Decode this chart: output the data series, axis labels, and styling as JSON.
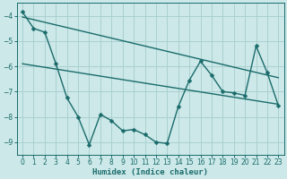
{
  "xlabel": "Humidex (Indice chaleur)",
  "background_color": "#cce8e8",
  "grid_color": "#aad0d0",
  "line_color": "#1a6b6b",
  "xlim": [
    -0.5,
    23.5
  ],
  "ylim": [
    -9.5,
    -3.5
  ],
  "yticks": [
    -9,
    -8,
    -7,
    -6,
    -5,
    -4
  ],
  "xticks": [
    0,
    1,
    2,
    3,
    4,
    5,
    6,
    7,
    8,
    9,
    10,
    11,
    12,
    13,
    14,
    15,
    16,
    17,
    18,
    19,
    20,
    21,
    22,
    23
  ],
  "line1_x": [
    0,
    1,
    2,
    3,
    4,
    5,
    6,
    7,
    8,
    9,
    10,
    11,
    12,
    13,
    14,
    15,
    16,
    17,
    18,
    19,
    20,
    21,
    22,
    23
  ],
  "line1_y": [
    -3.85,
    -4.5,
    -4.65,
    -5.9,
    -7.25,
    -8.0,
    -9.1,
    -7.9,
    -8.15,
    -8.55,
    -8.5,
    -8.7,
    -9.0,
    -9.05,
    -7.6,
    -6.55,
    -5.8,
    -6.35,
    -7.0,
    -7.05,
    -7.15,
    -5.2,
    -6.25,
    -7.55
  ],
  "line2_x": [
    0,
    23
  ],
  "line2_y": [
    -4.05,
    -6.45
  ],
  "line3_x": [
    0,
    23
  ],
  "line3_y": [
    -5.9,
    -7.5
  ],
  "markersize": 2.5,
  "linewidth": 1.0,
  "tick_labelsize": 5.5,
  "xlabel_fontsize": 6.5
}
